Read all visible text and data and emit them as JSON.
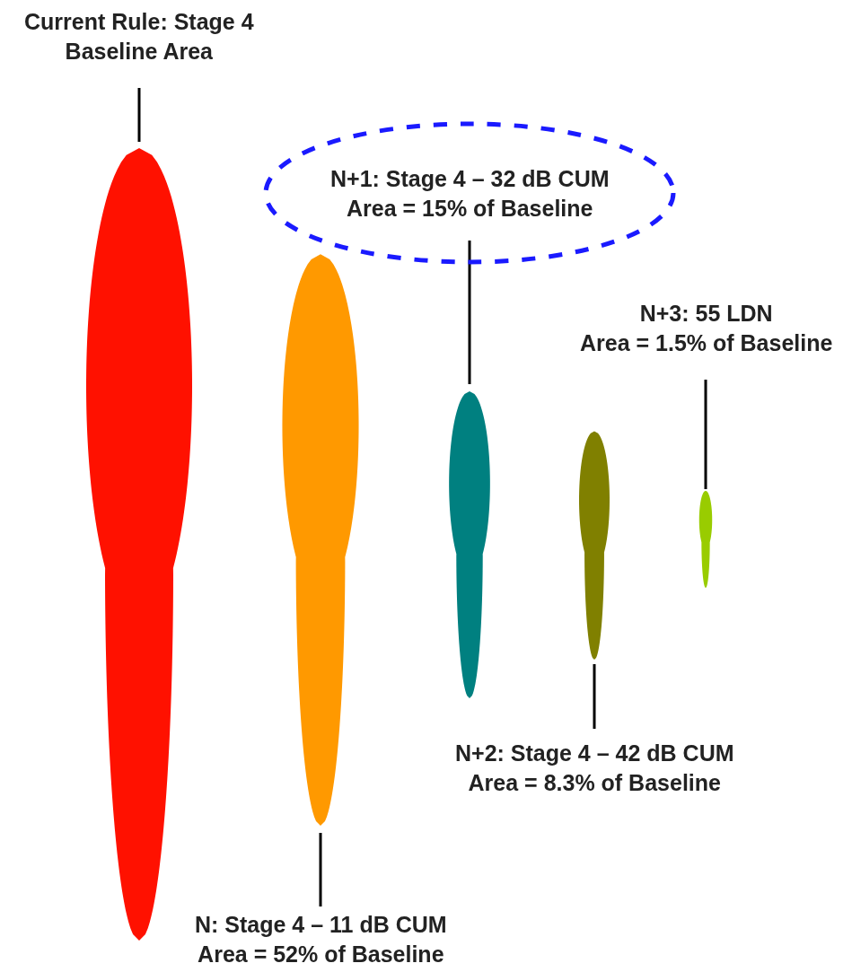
{
  "chart_data": {
    "type": "other",
    "categories": [
      "Current Rule: Stage 4",
      "N: Stage 4 – 11 dB CUM",
      "N+1: Stage 4 – 32 dB CUM",
      "N+2: Stage 4 – 42 dB CUM",
      "N+3: 55 LDN"
    ],
    "values": [
      null,
      52,
      15,
      8.3,
      1.5
    ],
    "value_labels": [
      "Baseline Area",
      "Area = 52% of Baseline",
      "Area = 15% of Baseline",
      "Area = 8.3% of Baseline",
      "Area = 1.5% of Baseline"
    ],
    "colors": [
      "#ff1100",
      "#ff9900",
      "#008080",
      "#808000",
      "#99cc00"
    ]
  }
}
